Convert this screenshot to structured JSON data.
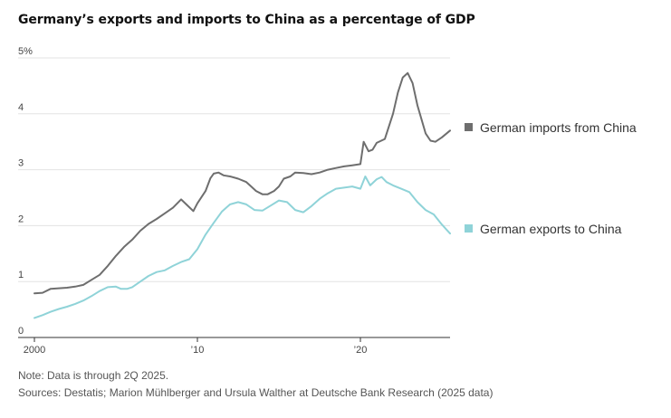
{
  "chart_data": {
    "type": "line",
    "title": "Germany’s exports and imports to China as a percentage of GDP",
    "note": "Note: Data is through 2Q 2025.",
    "sources": "Sources: Destatis; Marion Mühlberger and Ursula Walther at Deutsche Bank Research (2025 data)",
    "xlim": [
      2000,
      2025.5
    ],
    "ylim": [
      0,
      5
    ],
    "y_ticks": [
      {
        "value": 0,
        "label": "0"
      },
      {
        "value": 1,
        "label": "1"
      },
      {
        "value": 2,
        "label": "2"
      },
      {
        "value": 3,
        "label": "3"
      },
      {
        "value": 4,
        "label": "4"
      },
      {
        "value": 5,
        "label": "5%"
      }
    ],
    "x_ticks": [
      {
        "value": 2000,
        "label": "2000"
      },
      {
        "value": 2010,
        "label": "’10"
      },
      {
        "value": 2020,
        "label": "’20"
      }
    ],
    "grid": true,
    "legend_placement": "right, beside line ends",
    "series": [
      {
        "name": "German imports from China",
        "color": "#6e6e6e",
        "points": [
          [
            2000.0,
            0.79
          ],
          [
            2000.5,
            0.8
          ],
          [
            2001.0,
            0.87
          ],
          [
            2001.5,
            0.88
          ],
          [
            2002.0,
            0.89
          ],
          [
            2002.5,
            0.91
          ],
          [
            2003.0,
            0.94
          ],
          [
            2003.5,
            1.03
          ],
          [
            2004.0,
            1.12
          ],
          [
            2004.5,
            1.28
          ],
          [
            2005.0,
            1.46
          ],
          [
            2005.5,
            1.62
          ],
          [
            2006.0,
            1.75
          ],
          [
            2006.5,
            1.91
          ],
          [
            2007.0,
            2.03
          ],
          [
            2007.5,
            2.12
          ],
          [
            2008.0,
            2.22
          ],
          [
            2008.5,
            2.32
          ],
          [
            2009.0,
            2.47
          ],
          [
            2009.5,
            2.33
          ],
          [
            2009.75,
            2.26
          ],
          [
            2010.0,
            2.4
          ],
          [
            2010.5,
            2.62
          ],
          [
            2010.8,
            2.85
          ],
          [
            2011.0,
            2.93
          ],
          [
            2011.3,
            2.95
          ],
          [
            2011.6,
            2.9
          ],
          [
            2012.0,
            2.88
          ],
          [
            2012.5,
            2.84
          ],
          [
            2013.0,
            2.78
          ],
          [
            2013.3,
            2.7
          ],
          [
            2013.6,
            2.62
          ],
          [
            2014.0,
            2.56
          ],
          [
            2014.3,
            2.56
          ],
          [
            2014.7,
            2.62
          ],
          [
            2015.0,
            2.7
          ],
          [
            2015.3,
            2.84
          ],
          [
            2015.7,
            2.88
          ],
          [
            2016.0,
            2.95
          ],
          [
            2016.5,
            2.94
          ],
          [
            2017.0,
            2.92
          ],
          [
            2017.5,
            2.95
          ],
          [
            2018.0,
            3.0
          ],
          [
            2018.5,
            3.03
          ],
          [
            2019.0,
            3.06
          ],
          [
            2019.5,
            3.08
          ],
          [
            2020.0,
            3.1
          ],
          [
            2020.2,
            3.5
          ],
          [
            2020.5,
            3.33
          ],
          [
            2020.75,
            3.36
          ],
          [
            2021.0,
            3.48
          ],
          [
            2021.5,
            3.55
          ],
          [
            2022.0,
            4.0
          ],
          [
            2022.3,
            4.38
          ],
          [
            2022.6,
            4.65
          ],
          [
            2022.9,
            4.73
          ],
          [
            2023.2,
            4.55
          ],
          [
            2023.5,
            4.15
          ],
          [
            2024.0,
            3.65
          ],
          [
            2024.3,
            3.52
          ],
          [
            2024.6,
            3.5
          ],
          [
            2025.0,
            3.58
          ],
          [
            2025.5,
            3.7
          ]
        ]
      },
      {
        "name": "German exports to China",
        "color": "#8fd3d8",
        "points": [
          [
            2000.0,
            0.35
          ],
          [
            2000.5,
            0.4
          ],
          [
            2001.0,
            0.46
          ],
          [
            2001.5,
            0.51
          ],
          [
            2002.0,
            0.55
          ],
          [
            2002.5,
            0.6
          ],
          [
            2003.0,
            0.66
          ],
          [
            2003.5,
            0.74
          ],
          [
            2004.0,
            0.83
          ],
          [
            2004.5,
            0.9
          ],
          [
            2005.0,
            0.91
          ],
          [
            2005.3,
            0.87
          ],
          [
            2005.7,
            0.87
          ],
          [
            2006.0,
            0.9
          ],
          [
            2006.5,
            1.0
          ],
          [
            2007.0,
            1.1
          ],
          [
            2007.5,
            1.17
          ],
          [
            2008.0,
            1.2
          ],
          [
            2008.5,
            1.28
          ],
          [
            2009.0,
            1.35
          ],
          [
            2009.5,
            1.4
          ],
          [
            2010.0,
            1.58
          ],
          [
            2010.5,
            1.84
          ],
          [
            2011.0,
            2.05
          ],
          [
            2011.5,
            2.25
          ],
          [
            2012.0,
            2.38
          ],
          [
            2012.5,
            2.42
          ],
          [
            2013.0,
            2.38
          ],
          [
            2013.5,
            2.28
          ],
          [
            2014.0,
            2.27
          ],
          [
            2014.5,
            2.36
          ],
          [
            2015.0,
            2.45
          ],
          [
            2015.5,
            2.42
          ],
          [
            2016.0,
            2.28
          ],
          [
            2016.5,
            2.24
          ],
          [
            2017.0,
            2.35
          ],
          [
            2017.5,
            2.48
          ],
          [
            2018.0,
            2.58
          ],
          [
            2018.5,
            2.66
          ],
          [
            2019.0,
            2.68
          ],
          [
            2019.5,
            2.7
          ],
          [
            2020.0,
            2.66
          ],
          [
            2020.3,
            2.88
          ],
          [
            2020.6,
            2.72
          ],
          [
            2021.0,
            2.83
          ],
          [
            2021.3,
            2.87
          ],
          [
            2021.6,
            2.78
          ],
          [
            2022.0,
            2.72
          ],
          [
            2022.5,
            2.66
          ],
          [
            2023.0,
            2.6
          ],
          [
            2023.5,
            2.42
          ],
          [
            2024.0,
            2.28
          ],
          [
            2024.5,
            2.2
          ],
          [
            2025.0,
            2.02
          ],
          [
            2025.5,
            1.86
          ]
        ]
      }
    ]
  }
}
